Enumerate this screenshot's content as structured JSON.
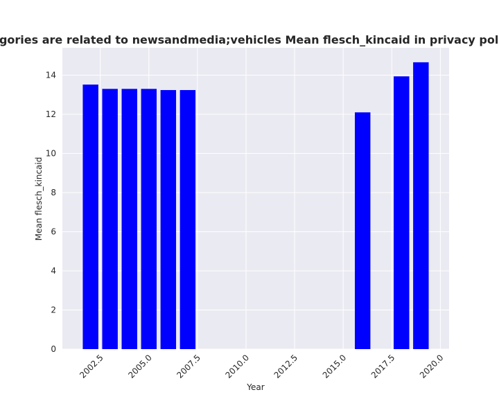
{
  "chart_data": {
    "type": "bar",
    "title": "en categories are related to newsandmedia;vehicles Mean flesch_kincaid in privacy policies by",
    "xlabel": "Year",
    "ylabel": "Mean flesch_kincaid",
    "x": [
      2002,
      2003,
      2004,
      2005,
      2006,
      2007,
      2016,
      2018,
      2019
    ],
    "values": [
      13.52,
      13.3,
      13.3,
      13.3,
      13.24,
      13.24,
      12.1,
      13.94,
      14.66
    ],
    "xlim": [
      2000.55,
      2020.45
    ],
    "ylim": [
      0,
      15.4
    ],
    "xticks": [
      "2002.5",
      "2005.0",
      "2007.5",
      "2010.0",
      "2012.5",
      "2015.0",
      "2017.5",
      "2020.0"
    ],
    "yticks": [
      "0",
      "2",
      "4",
      "6",
      "8",
      "10",
      "12",
      "14"
    ],
    "bar_color": "#0000ff",
    "plot_background": "#eaeaf2",
    "grid": true,
    "legend": "none"
  }
}
